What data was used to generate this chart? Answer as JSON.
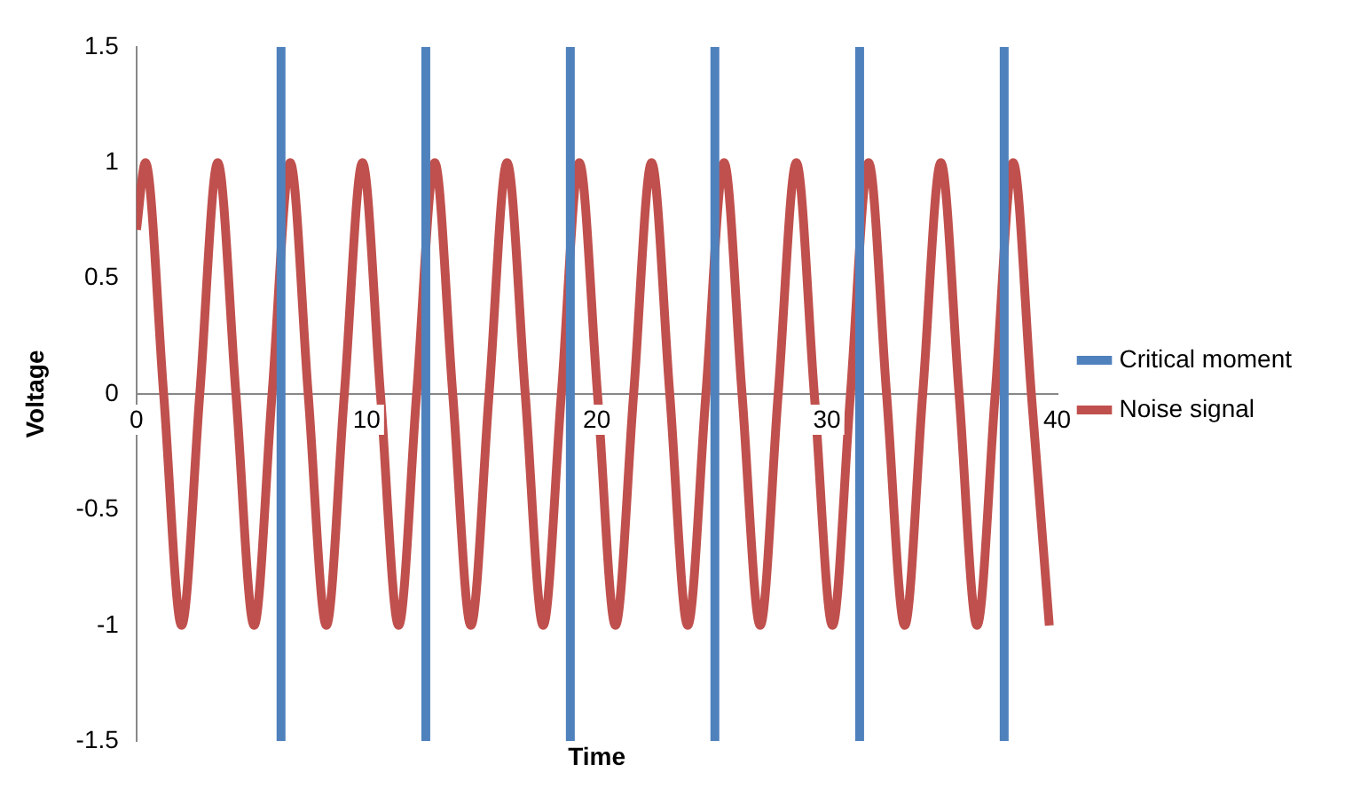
{
  "chart_data": {
    "type": "line",
    "xlabel": "Time",
    "ylabel": "Voltage",
    "xlim": [
      0,
      40
    ],
    "xticks": [
      0,
      10,
      20,
      30,
      40
    ],
    "ylim": [
      -1.5,
      1.5
    ],
    "yticks": [
      -1.5,
      -1,
      -0.5,
      0,
      0.5,
      1,
      1.5
    ],
    "grid": false,
    "legend": "right",
    "marker": "none",
    "line_style": "solid",
    "series": [
      {
        "name": "Critical moment",
        "color": "#4f81bd",
        "x": [
          6.28,
          6.28,
          12.57,
          12.57,
          18.85,
          18.85,
          25.13,
          25.13,
          31.42,
          31.42,
          37.7,
          37.7
        ],
        "values": [
          -1.5,
          1.5,
          1.5,
          -1.5,
          -1.5,
          1.5,
          1.5,
          -1.5,
          -1.5,
          1.5,
          1.5,
          -1.5
        ]
      },
      {
        "name": "Noise signal",
        "color": "#c0504d",
        "x": [
          0,
          0.39,
          1.18,
          1.96,
          2.75,
          3.53,
          4.32,
          5.11,
          5.89,
          6.68,
          7.46,
          8.25,
          9.03,
          9.82,
          10.6,
          11.39,
          12.17,
          12.96,
          13.74,
          14.53,
          15.32,
          16.1,
          16.89,
          17.67,
          18.46,
          19.24,
          20.03,
          20.81,
          21.6,
          22.38,
          23.17,
          23.95,
          24.74,
          25.53,
          26.31,
          27.1,
          27.88,
          28.67,
          29.45,
          30.24,
          31.02,
          31.81,
          32.59,
          33.38,
          34.16,
          34.95,
          35.74,
          36.52,
          37.31,
          38.09,
          38.88,
          39.66
        ],
        "values": [
          0.71,
          1,
          0,
          -1,
          0,
          1,
          0,
          -1,
          0,
          1,
          0,
          -1,
          0,
          1,
          0,
          -1,
          0,
          1,
          0,
          -1,
          0,
          1,
          0,
          -1,
          0,
          1,
          0,
          -1,
          0,
          1,
          0,
          -1,
          0,
          1,
          0,
          -1,
          0,
          1,
          0,
          -1,
          0,
          1,
          0,
          -1,
          0,
          1,
          0,
          -1,
          0,
          1,
          0,
          -1
        ]
      }
    ]
  }
}
